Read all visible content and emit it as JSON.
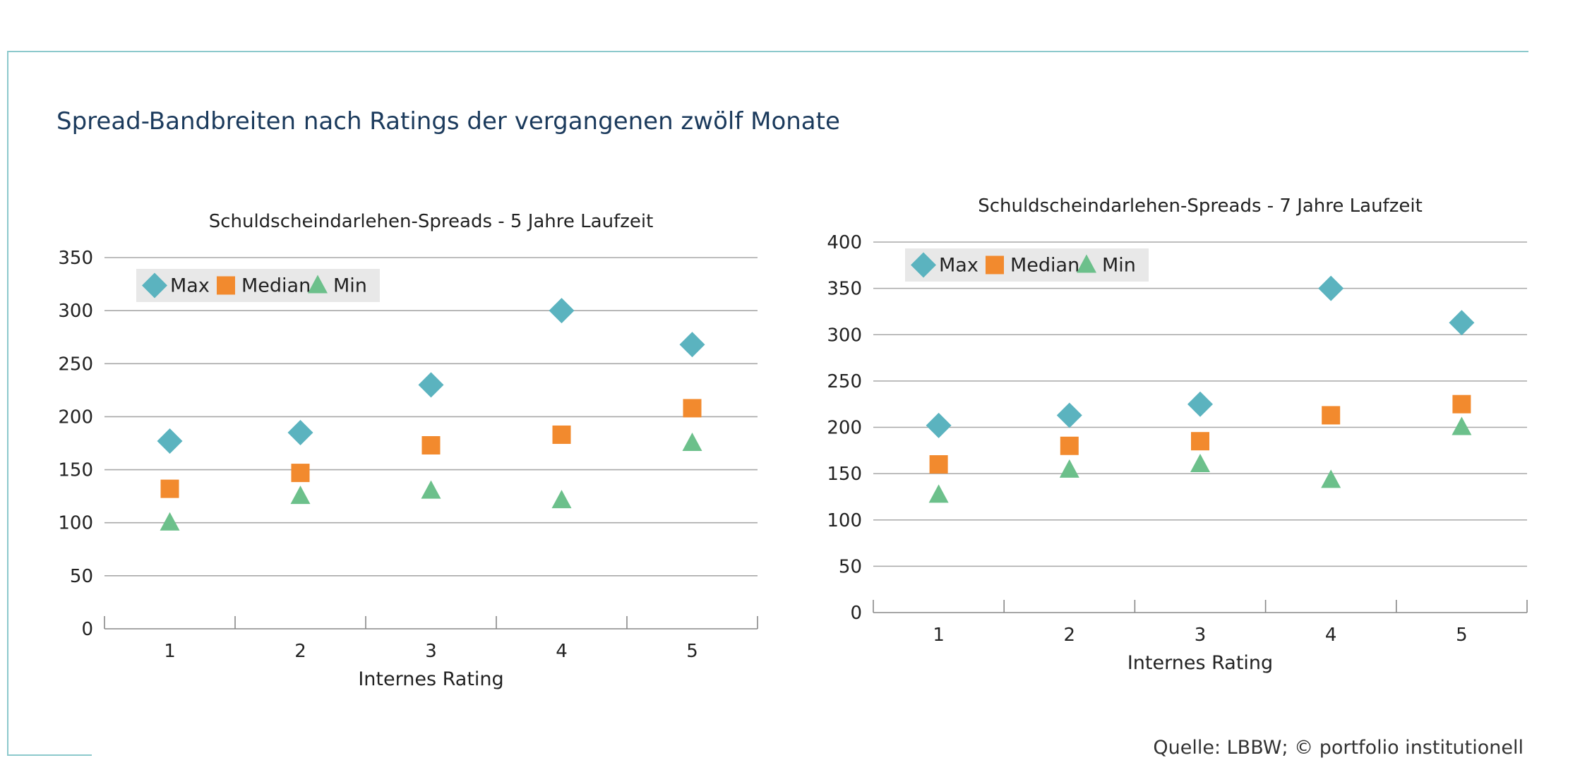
{
  "page": {
    "title": "Spread-Bandbreiten nach Ratings der vergangenen zwölf Monate",
    "source": "Quelle: LBBW; © portfolio institutionell"
  },
  "colors": {
    "max": "#5bb3bf",
    "median": "#f28a2e",
    "min": "#6cc08b",
    "frame": "#8cc9cc",
    "title": "#1b3a5c"
  },
  "chart_data": [
    {
      "type": "scatter",
      "title": "Schuldscheindarlehen-Spreads - 5 Jahre Laufzeit",
      "xlabel": "Internes Rating",
      "ylabel": "",
      "categories": [
        "1",
        "2",
        "3",
        "4",
        "5"
      ],
      "ylim": [
        0,
        350
      ],
      "yticks": [
        0,
        50,
        100,
        150,
        200,
        250,
        300,
        350
      ],
      "grid": true,
      "legend": "top-left",
      "series": [
        {
          "name": "Max",
          "marker": "diamond",
          "values": [
            177,
            185,
            230,
            300,
            268
          ]
        },
        {
          "name": "Median",
          "marker": "square",
          "values": [
            132,
            147,
            173,
            183,
            208
          ]
        },
        {
          "name": "Min",
          "marker": "triangle",
          "values": [
            100,
            125,
            130,
            121,
            175
          ]
        }
      ]
    },
    {
      "type": "scatter",
      "title": "Schuldscheindarlehen-Spreads - 7 Jahre Laufzeit",
      "xlabel": "Internes Rating",
      "ylabel": "",
      "categories": [
        "1",
        "2",
        "3",
        "4",
        "5"
      ],
      "ylim": [
        0,
        400
      ],
      "yticks": [
        0,
        50,
        100,
        150,
        200,
        250,
        300,
        350,
        400
      ],
      "grid": true,
      "legend": "top-left",
      "series": [
        {
          "name": "Max",
          "marker": "diamond",
          "values": [
            202,
            213,
            225,
            350,
            313
          ]
        },
        {
          "name": "Median",
          "marker": "square",
          "values": [
            160,
            180,
            185,
            213,
            225
          ]
        },
        {
          "name": "Min",
          "marker": "triangle",
          "values": [
            127,
            154,
            160,
            143,
            200
          ]
        }
      ]
    }
  ]
}
